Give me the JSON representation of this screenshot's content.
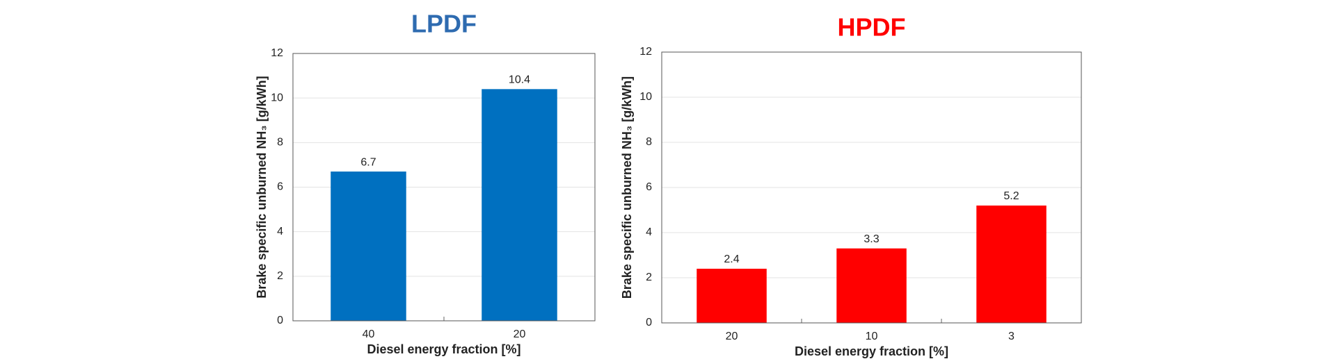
{
  "chart_data": [
    {
      "type": "bar",
      "title": "LPDF",
      "title_color": "#2e6bb0",
      "categories": [
        "40",
        "20"
      ],
      "values": [
        6.7,
        10.4
      ],
      "color": "#0070c0",
      "ylim": [
        0,
        12
      ],
      "yticks": [
        0,
        2,
        4,
        6,
        8,
        10,
        12
      ],
      "grid": true,
      "x_label": "Diesel energy fraction [%]",
      "y_label": "Brake specific unburned NH₃ [g/kWh]"
    },
    {
      "type": "bar",
      "title": "HPDF",
      "title_color": "#ff0000",
      "categories": [
        "20",
        "10",
        "3"
      ],
      "values": [
        2.4,
        3.3,
        5.2
      ],
      "color": "#ff0000",
      "ylim": [
        0,
        12
      ],
      "yticks": [
        0,
        2,
        4,
        6,
        8,
        10,
        12
      ],
      "grid": true,
      "x_label": "Diesel energy fraction [%]",
      "y_label": "Brake specific unburned NH₃ [g/kWh]"
    }
  ]
}
